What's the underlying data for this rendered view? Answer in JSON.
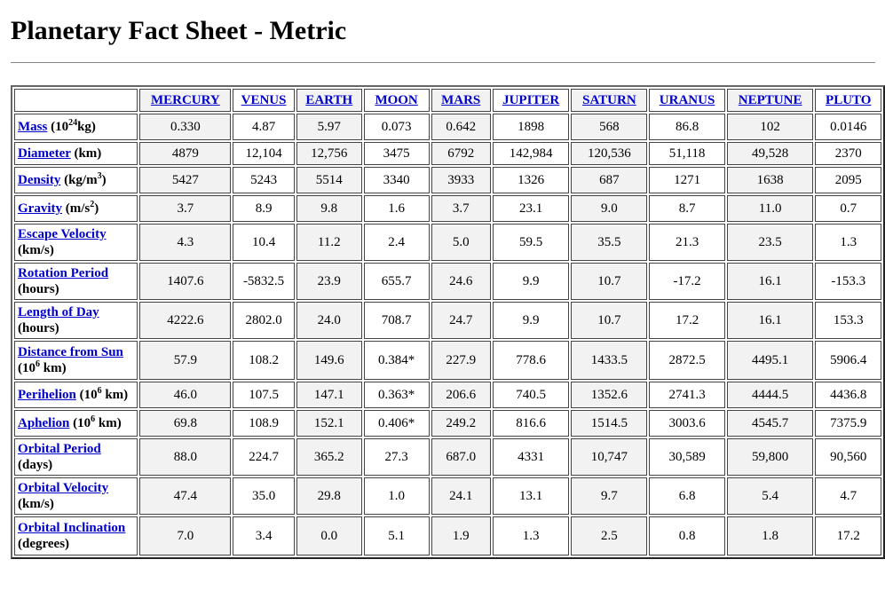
{
  "page": {
    "title": "Planetary Fact Sheet - Metric"
  },
  "table": {
    "columns": [
      "MERCURY",
      "VENUS",
      "EARTH",
      "MOON",
      "MARS",
      "JUPITER",
      "SATURN",
      "URANUS",
      "NEPTUNE",
      "PLUTO"
    ],
    "rows": [
      {
        "label": "Mass",
        "unit_pre": " (10",
        "unit_sup": "24",
        "unit_post": "kg)",
        "two_line": false,
        "values": [
          "0.330",
          "4.87",
          "5.97",
          "0.073",
          "0.642",
          "1898",
          "568",
          "86.8",
          "102",
          "0.0146"
        ]
      },
      {
        "label": "Diameter",
        "unit_pre": " (km)",
        "unit_sup": "",
        "unit_post": "",
        "two_line": false,
        "values": [
          "4879",
          "12,104",
          "12,756",
          "3475",
          "6792",
          "142,984",
          "120,536",
          "51,118",
          "49,528",
          "2370"
        ]
      },
      {
        "label": "Density",
        "unit_pre": " (kg/m",
        "unit_sup": "3",
        "unit_post": ")",
        "two_line": false,
        "values": [
          "5427",
          "5243",
          "5514",
          "3340",
          "3933",
          "1326",
          "687",
          "1271",
          "1638",
          "2095"
        ]
      },
      {
        "label": "Gravity",
        "unit_pre": " (m/s",
        "unit_sup": "2",
        "unit_post": ")",
        "two_line": false,
        "values": [
          "3.7",
          "8.9",
          "9.8",
          "1.6",
          "3.7",
          "23.1",
          "9.0",
          "8.7",
          "11.0",
          "0.7"
        ]
      },
      {
        "label": "Escape Velocity",
        "unit_pre": "(km/s)",
        "unit_sup": "",
        "unit_post": "",
        "two_line": true,
        "values": [
          "4.3",
          "10.4",
          "11.2",
          "2.4",
          "5.0",
          "59.5",
          "35.5",
          "21.3",
          "23.5",
          "1.3"
        ]
      },
      {
        "label": "Rotation Period",
        "unit_pre": "(hours)",
        "unit_sup": "",
        "unit_post": "",
        "two_line": true,
        "values": [
          "1407.6",
          "-5832.5",
          "23.9",
          "655.7",
          "24.6",
          "9.9",
          "10.7",
          "-17.2",
          "16.1",
          "-153.3"
        ]
      },
      {
        "label": "Length of Day",
        "unit_pre": "(hours)",
        "unit_sup": "",
        "unit_post": "",
        "two_line": true,
        "values": [
          "4222.6",
          "2802.0",
          "24.0",
          "708.7",
          "24.7",
          "9.9",
          "10.7",
          "17.2",
          "16.1",
          "153.3"
        ]
      },
      {
        "label": "Distance from Sun",
        "unit_pre": "(10",
        "unit_sup": "6",
        "unit_post": " km)",
        "two_line": true,
        "values": [
          "57.9",
          "108.2",
          "149.6",
          "0.384*",
          "227.9",
          "778.6",
          "1433.5",
          "2872.5",
          "4495.1",
          "5906.4"
        ]
      },
      {
        "label": "Perihelion",
        "unit_pre": " (10",
        "unit_sup": "6",
        "unit_post": " km)",
        "two_line": false,
        "values": [
          "46.0",
          "107.5",
          "147.1",
          "0.363*",
          "206.6",
          "740.5",
          "1352.6",
          "2741.3",
          "4444.5",
          "4436.8"
        ]
      },
      {
        "label": "Aphelion",
        "unit_pre": " (10",
        "unit_sup": "6",
        "unit_post": " km)",
        "two_line": false,
        "values": [
          "69.8",
          "108.9",
          "152.1",
          "0.406*",
          "249.2",
          "816.6",
          "1514.5",
          "3003.6",
          "4545.7",
          "7375.9"
        ]
      },
      {
        "label": "Orbital Period",
        "unit_pre": "(days)",
        "unit_sup": "",
        "unit_post": "",
        "two_line": true,
        "values": [
          "88.0",
          "224.7",
          "365.2",
          "27.3",
          "687.0",
          "4331",
          "10,747",
          "30,589",
          "59,800",
          "90,560"
        ]
      },
      {
        "label": "Orbital Velocity",
        "unit_pre": "(km/s)",
        "unit_sup": "",
        "unit_post": "",
        "two_line": true,
        "values": [
          "47.4",
          "35.0",
          "29.8",
          "1.0",
          "24.1",
          "13.1",
          "9.7",
          "6.8",
          "5.4",
          "4.7"
        ]
      },
      {
        "label": "Orbital Inclination",
        "unit_pre": "(degrees)",
        "unit_sup": "",
        "unit_post": "",
        "two_line": true,
        "values": [
          "7.0",
          "3.4",
          "0.0",
          "5.1",
          "1.9",
          "1.3",
          "2.5",
          "0.8",
          "1.8",
          "17.2"
        ]
      }
    ]
  },
  "colors": {
    "link": "#0000cc",
    "shaded_cell": "#f2f2f2",
    "border": "#444444"
  }
}
